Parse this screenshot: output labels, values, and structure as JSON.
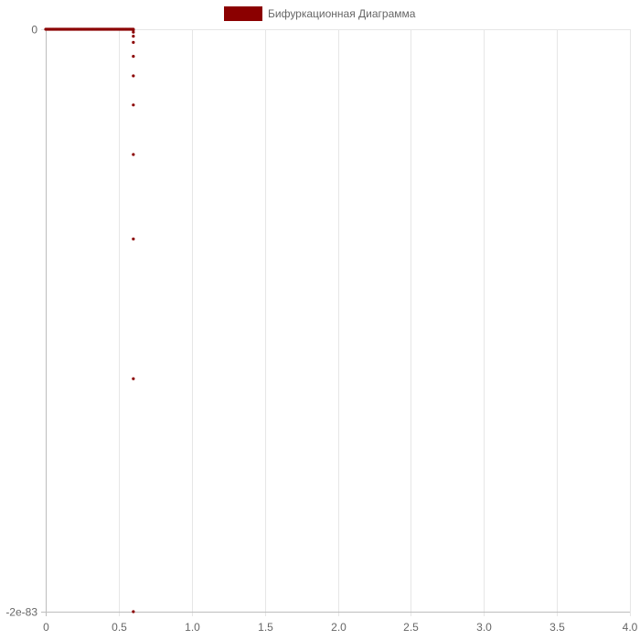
{
  "chart_data": {
    "type": "scatter",
    "title": "",
    "xlabel": "",
    "ylabel": "",
    "legend": {
      "position": "top",
      "entries": [
        {
          "label": "Бифуркационная Диаграмма"
        }
      ]
    },
    "colors": {
      "series": "#8b0000",
      "grid": "#e6e6e6",
      "axis": "#bdbdbd",
      "tick_label": "#666666"
    },
    "grid": true,
    "xlim": [
      0,
      4
    ],
    "ylim": [
      -2e-83,
      0
    ],
    "x_ticks": [
      "0",
      "0.5",
      "1.0",
      "1.5",
      "2.0",
      "2.5",
      "3.0",
      "3.5",
      "4.0"
    ],
    "y_ticks": [
      "0",
      "-2e-83"
    ],
    "series": [
      {
        "name": "Бифуркационная Диаграмма",
        "x_range": [
          0,
          0.6
        ],
        "x_step": 0.005,
        "y_at_each_x": 0,
        "tail_points": [
          {
            "x": 0.6,
            "y": -2.5e-86
          },
          {
            "x": 0.6,
            "y": -1e-85
          },
          {
            "x": 0.6,
            "y": -2.4e-85
          },
          {
            "x": 0.6,
            "y": -4.5e-85
          },
          {
            "x": 0.6,
            "y": -9.3e-85
          },
          {
            "x": 0.6,
            "y": -1.6e-84
          },
          {
            "x": 0.6,
            "y": -2.6e-84
          },
          {
            "x": 0.6,
            "y": -4.3e-84
          },
          {
            "x": 0.6,
            "y": -7.2e-84
          },
          {
            "x": 0.6,
            "y": -1.2e-83
          },
          {
            "x": 0.6,
            "y": -2e-83
          }
        ]
      }
    ]
  }
}
